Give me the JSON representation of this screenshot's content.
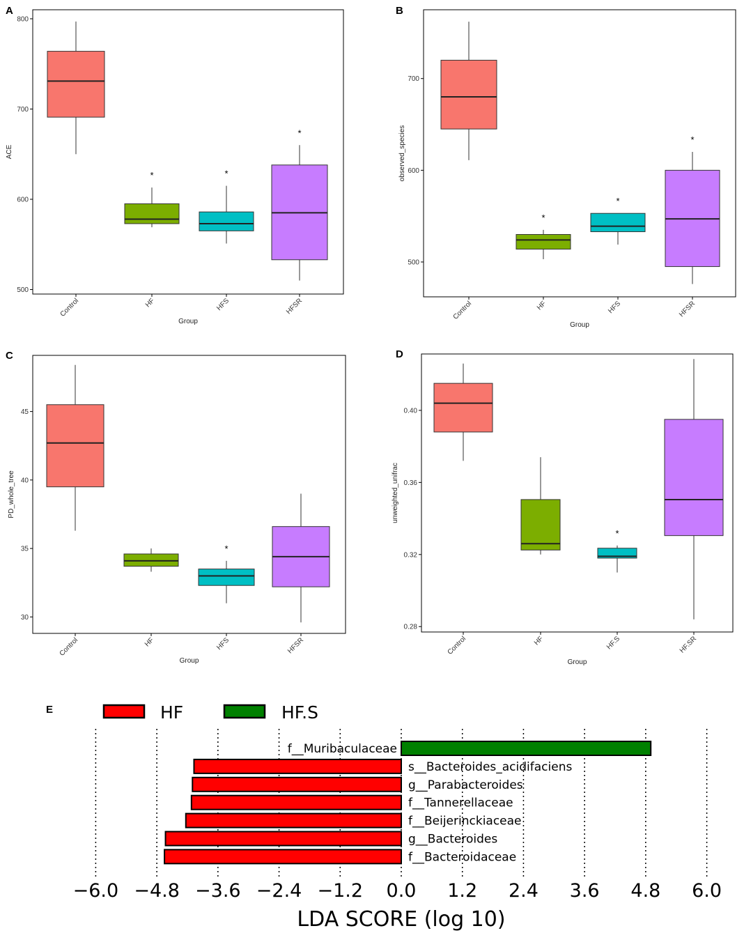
{
  "figure": {
    "colors": {
      "control": "#F8766D",
      "hf": "#7CAE00",
      "hfs": "#00BFC4",
      "hfsr": "#C77CFF",
      "lda_hf": "#FF0000",
      "lda_hfs": "#008000"
    }
  },
  "chart_data": [
    {
      "type": "box",
      "panel": "A",
      "xlabel": "Group",
      "ylabel": "ACE",
      "ylim": [
        495,
        810
      ],
      "yticks": [
        500,
        600,
        700,
        800
      ],
      "categories": [
        "Control",
        "HF",
        "HFS",
        "HFSR"
      ],
      "boxes": [
        {
          "group": "Control",
          "min": 650,
          "q1": 691,
          "median": 731,
          "q3": 764,
          "max": 797,
          "star": ""
        },
        {
          "group": "HF",
          "min": 569,
          "q1": 573,
          "median": 578,
          "q3": 595,
          "max": 613,
          "star": "*"
        },
        {
          "group": "HFS",
          "min": 551,
          "q1": 565,
          "median": 573,
          "q3": 586,
          "max": 615,
          "star": "*"
        },
        {
          "group": "HFSR",
          "min": 510,
          "q1": 533,
          "median": 585,
          "q3": 638,
          "max": 660,
          "star": "*"
        }
      ]
    },
    {
      "type": "box",
      "panel": "B",
      "xlabel": "Group",
      "ylabel": "observed_species",
      "ylim": [
        462,
        775
      ],
      "yticks": [
        500,
        600,
        700
      ],
      "categories": [
        "Control",
        "HF",
        "HFS",
        "HFSR"
      ],
      "boxes": [
        {
          "group": "Control",
          "min": 611,
          "q1": 645,
          "median": 680,
          "q3": 720,
          "max": 762,
          "star": ""
        },
        {
          "group": "HF",
          "min": 503,
          "q1": 514,
          "median": 524,
          "q3": 530,
          "max": 535,
          "star": "*"
        },
        {
          "group": "HFS",
          "min": 519,
          "q1": 533,
          "median": 539,
          "q3": 553,
          "max": 553,
          "star": "*"
        },
        {
          "group": "HFSR",
          "min": 476,
          "q1": 495,
          "median": 547,
          "q3": 600,
          "max": 620,
          "star": "*"
        }
      ]
    },
    {
      "type": "box",
      "panel": "C",
      "xlabel": "Group",
      "ylabel": "PD_whole_tree",
      "ylim": [
        28.8,
        49.1
      ],
      "yticks": [
        30,
        35,
        40,
        45
      ],
      "categories": [
        "Control",
        "HF",
        "HFS",
        "HFSR"
      ],
      "boxes": [
        {
          "group": "Control",
          "min": 36.3,
          "q1": 39.5,
          "median": 42.7,
          "q3": 45.5,
          "max": 48.4,
          "star": ""
        },
        {
          "group": "HF",
          "min": 33.3,
          "q1": 33.7,
          "median": 34.1,
          "q3": 34.6,
          "max": 35.0,
          "star": ""
        },
        {
          "group": "HFS",
          "min": 31.0,
          "q1": 32.3,
          "median": 33.0,
          "q3": 33.5,
          "max": 34.1,
          "star": "*"
        },
        {
          "group": "HFSR",
          "min": 29.6,
          "q1": 32.2,
          "median": 34.4,
          "q3": 36.6,
          "max": 39.0,
          "star": ""
        }
      ]
    },
    {
      "type": "box",
      "panel": "D",
      "xlabel": "Group",
      "ylabel": "unweighted_unifrac",
      "ylim": [
        0.277,
        0.4313
      ],
      "yticks": [
        0.28,
        0.32,
        0.36,
        0.4
      ],
      "ytick_labels": [
        "0.28",
        "0.32",
        "0.36",
        "0.40"
      ],
      "categories": [
        "Control",
        "HF",
        "HF.S",
        "HF.SR"
      ],
      "boxes": [
        {
          "group": "Control",
          "min": 0.372,
          "q1": 0.388,
          "median": 0.404,
          "q3": 0.415,
          "max": 0.426,
          "star": ""
        },
        {
          "group": "HF",
          "min": 0.32,
          "q1": 0.3225,
          "median": 0.326,
          "q3": 0.3505,
          "max": 0.374,
          "star": ""
        },
        {
          "group": "HF.S",
          "min": 0.31,
          "q1": 0.318,
          "median": 0.319,
          "q3": 0.3235,
          "max": 0.325,
          "star": "*"
        },
        {
          "group": "HF.SR",
          "min": 0.284,
          "q1": 0.3305,
          "median": 0.3505,
          "q3": 0.395,
          "max": 0.4285,
          "star": ""
        }
      ]
    },
    {
      "type": "bar",
      "orientation": "horizontal",
      "panel": "E",
      "xlabel": "LDA SCORE (log 10)",
      "xlim": [
        -6.0,
        6.0
      ],
      "xticks": [
        -6.0,
        -4.8,
        -3.6,
        -2.4,
        -1.2,
        0.0,
        1.2,
        2.4,
        3.6,
        4.8,
        6.0
      ],
      "xtick_labels": [
        "−6.0",
        "−4.8",
        "−3.6",
        "−2.4",
        "−1.2",
        "0.0",
        "1.2",
        "2.4",
        "3.6",
        "4.8",
        "6.0"
      ],
      "legend": [
        {
          "label": "HF"
        },
        {
          "label": "HF.S"
        }
      ],
      "bars": [
        {
          "label": "f__Muribaculaceae",
          "value": 4.9,
          "group": "HF.S"
        },
        {
          "label": "s__Bacteroides_acidifaciens",
          "value": -4.07,
          "group": "HF"
        },
        {
          "label": "g__Parabacteroides",
          "value": -4.1,
          "group": "HF"
        },
        {
          "label": "f__Tannerellaceae",
          "value": -4.12,
          "group": "HF"
        },
        {
          "label": "f__Beijerinckiaceae",
          "value": -4.23,
          "group": "HF"
        },
        {
          "label": "g__Bacteroides",
          "value": -4.63,
          "group": "HF"
        },
        {
          "label": "f__Bacteroidaceae",
          "value": -4.65,
          "group": "HF"
        }
      ]
    }
  ]
}
